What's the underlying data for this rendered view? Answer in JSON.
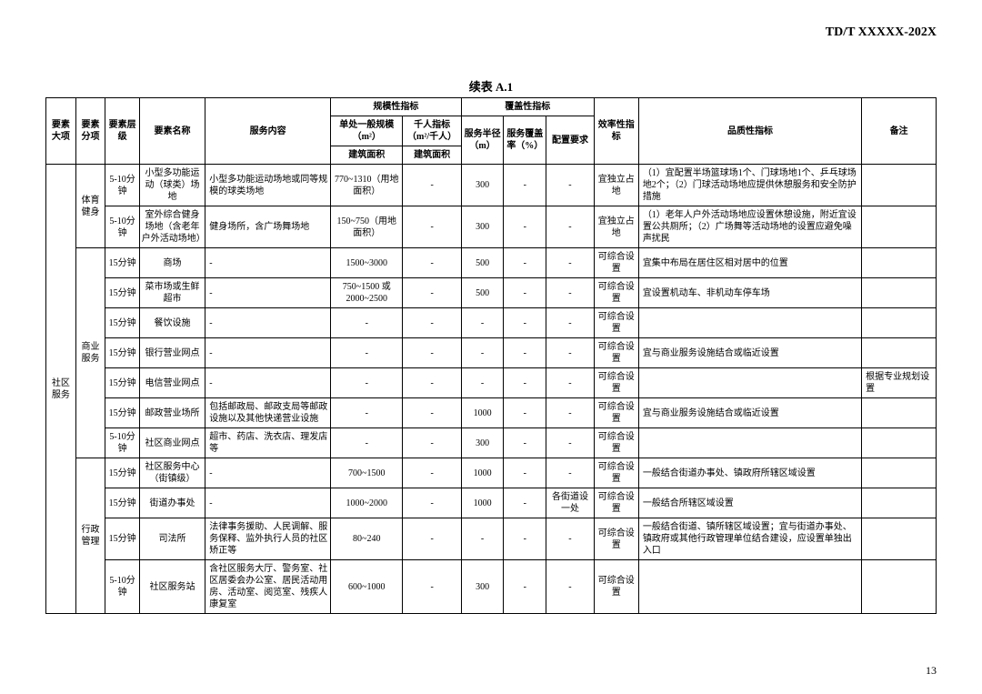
{
  "doc_code": "TD/T  XXXXX-202X",
  "table_title": "续表 A.1",
  "page_number": "13",
  "headers": {
    "col_major": "要素大项",
    "col_sub": "要素分项",
    "col_level": "要素层级",
    "col_name": "要素名称",
    "col_content": "服务内容",
    "col_scale_group": "规模性指标",
    "col_scale_single": "单处一般规模（m²）",
    "col_per_thousand": "千人指标（m²/千人）",
    "col_building": "建筑面积",
    "col_building2": "建筑面积",
    "col_coverage_group": "覆盖性指标",
    "col_radius": "服务半径（m）",
    "col_rate": "服务覆盖率（%）",
    "col_config": "配置要求",
    "col_efficiency": "效率性指标",
    "col_quality": "品质性指标",
    "col_remark": "备注"
  },
  "cat_major": "社区服务",
  "cat_sports": "体育健身",
  "cat_commerce": "商业服务",
  "cat_admin": "行政管理",
  "rows": [
    {
      "level": "5-10分钟",
      "name": "小型多功能运动（球类）场地",
      "content": "小型多功能运动场地或同等规模的球类场地",
      "scale": "770~1310（用地面积）",
      "per1000": "-",
      "radius": "300",
      "rate": "-",
      "config": "-",
      "eff": "宜独立占地",
      "quality": "（1）宜配置半场篮球场1个、门球场地1个、乒乓球场地2个；（2）门球活动场地应提供休憩服务和安全防护措施",
      "remark": ""
    },
    {
      "level": "5-10分钟",
      "name": "室外综合健身场地（含老年户外活动场地）",
      "content": "健身场所，含广场舞场地",
      "scale": "150~750（用地面积）",
      "per1000": "-",
      "radius": "300",
      "rate": "-",
      "config": "-",
      "eff": "宜独立占地",
      "quality": "（1）老年人户外活动场地应设置休憩设施，附近宜设置公共厕所；（2）广场舞等活动场地的设置应避免噪声扰民",
      "remark": ""
    },
    {
      "level": "15分钟",
      "name": "商场",
      "content": "-",
      "scale": "1500~3000",
      "per1000": "-",
      "radius": "500",
      "rate": "-",
      "config": "-",
      "eff": "可综合设置",
      "quality": "宜集中布局在居住区相对居中的位置",
      "remark": ""
    },
    {
      "level": "15分钟",
      "name": "菜市场或生鲜超市",
      "content": "-",
      "scale": "750~1500 或 2000~2500",
      "per1000": "-",
      "radius": "500",
      "rate": "-",
      "config": "-",
      "eff": "可综合设置",
      "quality": "宜设置机动车、非机动车停车场",
      "remark": ""
    },
    {
      "level": "15分钟",
      "name": "餐饮设施",
      "content": "-",
      "scale": "-",
      "per1000": "-",
      "radius": "-",
      "rate": "-",
      "config": "-",
      "eff": "可综合设置",
      "quality": "",
      "remark": ""
    },
    {
      "level": "15分钟",
      "name": "银行营业网点",
      "content": "-",
      "scale": "-",
      "per1000": "-",
      "radius": "-",
      "rate": "-",
      "config": "-",
      "eff": "可综合设置",
      "quality": "宜与商业服务设施结合或临近设置",
      "remark": ""
    },
    {
      "level": "15分钟",
      "name": "电信营业网点",
      "content": "-",
      "scale": "-",
      "per1000": "-",
      "radius": "-",
      "rate": "-",
      "config": "-",
      "eff": "可综合设置",
      "quality": "",
      "remark": "根据专业规划设置"
    },
    {
      "level": "15分钟",
      "name": "邮政营业场所",
      "content": "包括邮政局、邮政支局等邮政设施以及其他快递营业设施",
      "scale": "-",
      "per1000": "-",
      "radius": "1000",
      "rate": "-",
      "config": "-",
      "eff": "可综合设置",
      "quality": "宜与商业服务设施结合或临近设置",
      "remark": ""
    },
    {
      "level": "5-10分钟",
      "name": "社区商业网点",
      "content": "超市、药店、洗衣店、理发店等",
      "scale": "-",
      "per1000": "-",
      "radius": "300",
      "rate": "-",
      "config": "-",
      "eff": "可综合设置",
      "quality": "",
      "remark": ""
    },
    {
      "level": "15分钟",
      "name": "社区服务中心（街镇级）",
      "content": "-",
      "scale": "700~1500",
      "per1000": "-",
      "radius": "1000",
      "rate": "-",
      "config": "-",
      "eff": "可综合设置",
      "quality": "一般结合街道办事处、镇政府所辖区域设置",
      "remark": ""
    },
    {
      "level": "15分钟",
      "name": "街道办事处",
      "content": "-",
      "scale": "1000~2000",
      "per1000": "-",
      "radius": "1000",
      "rate": "-",
      "config": "各街道设一处",
      "eff": "可综合设置",
      "quality": "一般结合所辖区域设置",
      "remark": ""
    },
    {
      "level": "15分钟",
      "name": "司法所",
      "content": "法律事务援助、人民调解、服务保释、监外执行人员的社区矫正等",
      "scale": "80~240",
      "per1000": "-",
      "radius": "-",
      "rate": "-",
      "config": "-",
      "eff": "可综合设置",
      "quality": "一般结合街道、镇所辖区域设置；宜与街道办事处、镇政府或其他行政管理单位结合建设，应设置单独出入口",
      "remark": ""
    },
    {
      "level": "5-10分钟",
      "name": "社区服务站",
      "content": "含社区服务大厅、警务室、社区居委会办公室、居民活动用房、活动室、阅览室、残疾人康复室",
      "scale": "600~1000",
      "per1000": "-",
      "radius": "300",
      "rate": "-",
      "config": "-",
      "eff": "可综合设置",
      "quality": "",
      "remark": ""
    }
  ]
}
